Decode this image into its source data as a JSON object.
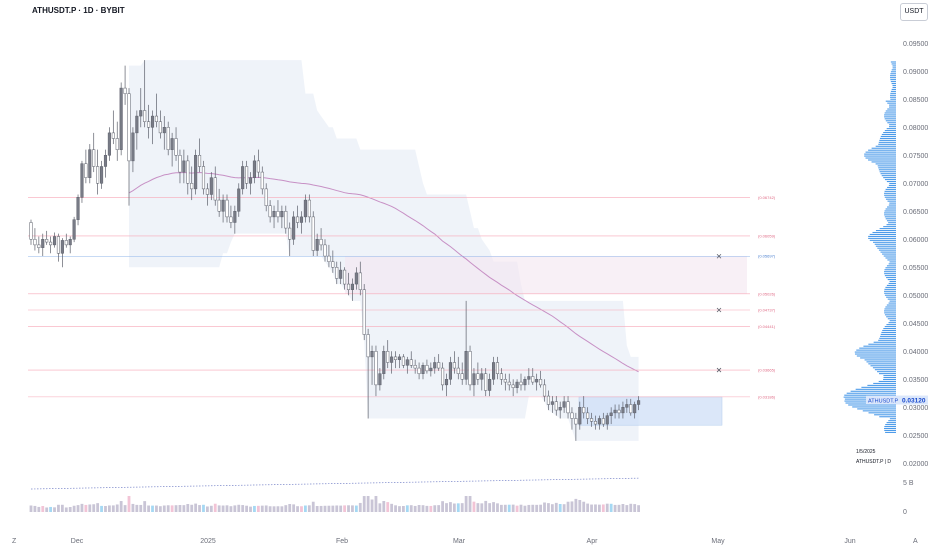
{
  "header": {
    "title": "ATHUSDT.P · 1D · BYBIT",
    "currency": "USDT"
  },
  "corner": {
    "left": "Z",
    "right": "A"
  },
  "profile_info": {
    "date": "1/5/2025",
    "symbol_tf": "ATHUSDT.P | D"
  },
  "price_tag": {
    "symbol": "ATHUSDT.P",
    "value": "0.03120"
  },
  "colors": {
    "bull": "#787b86",
    "bear": "#ffffff",
    "candle_border": "#5d606b",
    "vwap": "#c790c5",
    "band": "#e8eef6",
    "level": "#f7a8b8",
    "level_blue": "#8fb5ea",
    "zone": "#cfe0f8",
    "volume_profile": "#2d8ae5",
    "volume_bar": "#c9c5d6",
    "volume_bar_blue": "#a5d8f3",
    "volume_bar_pink": "#f2c4d6"
  },
  "chart_data": {
    "type": "candlestick",
    "x_tick_labels": [
      "Dec",
      "2025",
      "Feb",
      "Mar",
      "Apr",
      "May",
      "Jun"
    ],
    "y_tick_labels": [
      "0.02000",
      "0.02500",
      "0.03000",
      "0.03500",
      "0.04000",
      "0.04500",
      "0.05000",
      "0.05500",
      "0.06000",
      "0.06500",
      "0.07000",
      "0.07500",
      "0.08000",
      "0.08500",
      "0.09000",
      "0.09500"
    ],
    "ylim": [
      0.0188,
      0.0988
    ],
    "start_date": "2024-11-10",
    "volume_ticks": [
      "5 B",
      "0"
    ],
    "levels": [
      {
        "value": 0.06742,
        "label": "(0.06742)",
        "color": "pink"
      },
      {
        "value": 0.06059,
        "label": "(0.06059)",
        "color": "pink"
      },
      {
        "value": 0.05697,
        "label": "(0.05697)",
        "color": "blue"
      },
      {
        "value": 0.05026,
        "label": "(0.05026)",
        "color": "pink"
      },
      {
        "value": 0.04737,
        "label": "(0.04737)",
        "color": "pink"
      },
      {
        "value": 0.04441,
        "label": "(0.04441)",
        "color": "pink"
      },
      {
        "value": 0.03665,
        "label": "(0.03665)",
        "color": "pink"
      },
      {
        "value": 0.03186,
        "label": "(0.03186)",
        "color": "pink"
      }
    ],
    "candles": [
      [
        0.063,
        0.0635,
        0.059,
        0.06
      ],
      [
        0.06,
        0.062,
        0.058,
        0.059
      ],
      [
        0.059,
        0.0605,
        0.0575,
        0.0585
      ],
      [
        0.0585,
        0.061,
        0.057,
        0.06
      ],
      [
        0.06,
        0.0615,
        0.059,
        0.0595
      ],
      [
        0.0595,
        0.0605,
        0.0575,
        0.059
      ],
      [
        0.059,
        0.0612,
        0.0585,
        0.0605
      ],
      [
        0.0605,
        0.061,
        0.056,
        0.0575
      ],
      [
        0.0575,
        0.0602,
        0.055,
        0.0598
      ],
      [
        0.0598,
        0.061,
        0.0585,
        0.059
      ],
      [
        0.059,
        0.0605,
        0.0575,
        0.06
      ],
      [
        0.06,
        0.064,
        0.0595,
        0.0635
      ],
      [
        0.0635,
        0.068,
        0.0625,
        0.0675
      ],
      [
        0.0675,
        0.074,
        0.0665,
        0.0735
      ],
      [
        0.0735,
        0.076,
        0.07,
        0.071
      ],
      [
        0.071,
        0.077,
        0.07,
        0.076
      ],
      [
        0.076,
        0.079,
        0.072,
        0.073
      ],
      [
        0.073,
        0.076,
        0.068,
        0.07
      ],
      [
        0.07,
        0.074,
        0.069,
        0.073
      ],
      [
        0.073,
        0.076,
        0.071,
        0.075
      ],
      [
        0.075,
        0.08,
        0.074,
        0.079
      ],
      [
        0.079,
        0.083,
        0.077,
        0.078
      ],
      [
        0.078,
        0.081,
        0.074,
        0.076
      ],
      [
        0.076,
        0.088,
        0.075,
        0.087
      ],
      [
        0.087,
        0.091,
        0.084,
        0.086
      ],
      [
        0.086,
        0.087,
        0.066,
        0.074
      ],
      [
        0.074,
        0.08,
        0.072,
        0.079
      ],
      [
        0.079,
        0.083,
        0.076,
        0.082
      ],
      [
        0.082,
        0.087,
        0.08,
        0.083
      ],
      [
        0.083,
        0.092,
        0.08,
        0.081
      ],
      [
        0.081,
        0.084,
        0.078,
        0.08
      ],
      [
        0.08,
        0.083,
        0.077,
        0.082
      ],
      [
        0.082,
        0.086,
        0.08,
        0.081
      ],
      [
        0.081,
        0.083,
        0.078,
        0.079
      ],
      [
        0.079,
        0.082,
        0.076,
        0.08
      ],
      [
        0.08,
        0.081,
        0.075,
        0.076
      ],
      [
        0.076,
        0.079,
        0.073,
        0.078
      ],
      [
        0.078,
        0.08,
        0.074,
        0.075
      ],
      [
        0.075,
        0.076,
        0.07,
        0.072
      ],
      [
        0.072,
        0.076,
        0.07,
        0.074
      ],
      [
        0.074,
        0.075,
        0.068,
        0.07
      ],
      [
        0.07,
        0.073,
        0.067,
        0.069
      ],
      [
        0.069,
        0.076,
        0.068,
        0.075
      ],
      [
        0.075,
        0.078,
        0.072,
        0.073
      ],
      [
        0.073,
        0.074,
        0.068,
        0.069
      ],
      [
        0.069,
        0.07,
        0.066,
        0.068
      ],
      [
        0.068,
        0.072,
        0.067,
        0.071
      ],
      [
        0.071,
        0.073,
        0.066,
        0.067
      ],
      [
        0.067,
        0.069,
        0.064,
        0.065
      ],
      [
        0.065,
        0.068,
        0.063,
        0.067
      ],
      [
        0.067,
        0.068,
        0.063,
        0.064
      ],
      [
        0.064,
        0.066,
        0.062,
        0.063
      ],
      [
        0.063,
        0.066,
        0.061,
        0.065
      ],
      [
        0.065,
        0.07,
        0.064,
        0.069
      ],
      [
        0.069,
        0.074,
        0.068,
        0.073
      ],
      [
        0.073,
        0.074,
        0.069,
        0.07
      ],
      [
        0.07,
        0.072,
        0.068,
        0.071
      ],
      [
        0.071,
        0.075,
        0.07,
        0.074
      ],
      [
        0.074,
        0.076,
        0.071,
        0.072
      ],
      [
        0.072,
        0.073,
        0.068,
        0.069
      ],
      [
        0.069,
        0.07,
        0.065,
        0.066
      ],
      [
        0.066,
        0.067,
        0.063,
        0.064
      ],
      [
        0.064,
        0.066,
        0.062,
        0.065
      ],
      [
        0.065,
        0.067,
        0.063,
        0.064
      ],
      [
        0.064,
        0.066,
        0.062,
        0.065
      ],
      [
        0.065,
        0.066,
        0.061,
        0.062
      ],
      [
        0.062,
        0.063,
        0.057,
        0.06
      ],
      [
        0.06,
        0.065,
        0.059,
        0.064
      ],
      [
        0.064,
        0.066,
        0.062,
        0.063
      ],
      [
        0.063,
        0.065,
        0.061,
        0.064
      ],
      [
        0.064,
        0.068,
        0.063,
        0.067
      ],
      [
        0.067,
        0.068,
        0.063,
        0.064
      ],
      [
        0.064,
        0.065,
        0.057,
        0.058
      ],
      [
        0.058,
        0.061,
        0.057,
        0.06
      ],
      [
        0.06,
        0.062,
        0.058,
        0.059
      ],
      [
        0.059,
        0.06,
        0.056,
        0.057
      ],
      [
        0.057,
        0.059,
        0.055,
        0.056
      ],
      [
        0.056,
        0.058,
        0.054,
        0.055
      ],
      [
        0.055,
        0.056,
        0.052,
        0.053
      ],
      [
        0.053,
        0.056,
        0.052,
        0.0545
      ],
      [
        0.0545,
        0.055,
        0.051,
        0.052
      ],
      [
        0.052,
        0.054,
        0.05,
        0.051
      ],
      [
        0.051,
        0.053,
        0.049,
        0.052
      ],
      [
        0.052,
        0.055,
        0.051,
        0.054
      ],
      [
        0.054,
        0.056,
        0.05,
        0.051
      ],
      [
        0.051,
        0.052,
        0.042,
        0.043
      ],
      [
        0.043,
        0.044,
        0.028,
        0.039
      ],
      [
        0.039,
        0.041,
        0.034,
        0.04
      ],
      [
        0.04,
        0.041,
        0.032,
        0.034
      ],
      [
        0.034,
        0.037,
        0.033,
        0.036
      ],
      [
        0.036,
        0.041,
        0.035,
        0.04
      ],
      [
        0.04,
        0.042,
        0.037,
        0.038
      ],
      [
        0.038,
        0.04,
        0.036,
        0.039
      ],
      [
        0.039,
        0.04,
        0.037,
        0.0385
      ],
      [
        0.0385,
        0.0395,
        0.037,
        0.039
      ],
      [
        0.039,
        0.0395,
        0.037,
        0.0375
      ],
      [
        0.0375,
        0.039,
        0.036,
        0.0385
      ],
      [
        0.0385,
        0.04,
        0.037,
        0.0375
      ],
      [
        0.0375,
        0.0385,
        0.036,
        0.037
      ],
      [
        0.037,
        0.038,
        0.035,
        0.036
      ],
      [
        0.036,
        0.038,
        0.035,
        0.0375
      ],
      [
        0.0375,
        0.0385,
        0.036,
        0.0365
      ],
      [
        0.0365,
        0.038,
        0.0355,
        0.037
      ],
      [
        0.037,
        0.039,
        0.036,
        0.038
      ],
      [
        0.038,
        0.0395,
        0.0365,
        0.037
      ],
      [
        0.037,
        0.038,
        0.033,
        0.034
      ],
      [
        0.034,
        0.036,
        0.032,
        0.035
      ],
      [
        0.035,
        0.039,
        0.034,
        0.038
      ],
      [
        0.038,
        0.04,
        0.036,
        0.037
      ],
      [
        0.037,
        0.039,
        0.035,
        0.036
      ],
      [
        0.036,
        0.038,
        0.034,
        0.035
      ],
      [
        0.035,
        0.049,
        0.034,
        0.04
      ],
      [
        0.04,
        0.041,
        0.033,
        0.034
      ],
      [
        0.034,
        0.037,
        0.032,
        0.036
      ],
      [
        0.036,
        0.038,
        0.034,
        0.035
      ],
      [
        0.035,
        0.037,
        0.033,
        0.036
      ],
      [
        0.036,
        0.037,
        0.032,
        0.033
      ],
      [
        0.033,
        0.036,
        0.032,
        0.035
      ],
      [
        0.035,
        0.039,
        0.034,
        0.038
      ],
      [
        0.038,
        0.039,
        0.035,
        0.036
      ],
      [
        0.036,
        0.037,
        0.034,
        0.035
      ],
      [
        0.035,
        0.036,
        0.033,
        0.0345
      ],
      [
        0.0345,
        0.036,
        0.033,
        0.034
      ],
      [
        0.034,
        0.035,
        0.032,
        0.0335
      ],
      [
        0.0335,
        0.035,
        0.0325,
        0.0345
      ],
      [
        0.0345,
        0.036,
        0.033,
        0.034
      ],
      [
        0.034,
        0.0355,
        0.033,
        0.035
      ],
      [
        0.035,
        0.037,
        0.034,
        0.0355
      ],
      [
        0.0355,
        0.037,
        0.034,
        0.0345
      ],
      [
        0.0345,
        0.036,
        0.033,
        0.035
      ],
      [
        0.035,
        0.0365,
        0.0335,
        0.034
      ],
      [
        0.034,
        0.035,
        0.031,
        0.032
      ],
      [
        0.032,
        0.033,
        0.0295,
        0.0305
      ],
      [
        0.0305,
        0.032,
        0.029,
        0.031
      ],
      [
        0.031,
        0.032,
        0.0285,
        0.0295
      ],
      [
        0.0295,
        0.031,
        0.028,
        0.03
      ],
      [
        0.03,
        0.032,
        0.029,
        0.031
      ],
      [
        0.031,
        0.032,
        0.028,
        0.029
      ],
      [
        0.029,
        0.03,
        0.026,
        0.028
      ],
      [
        0.028,
        0.029,
        0.024,
        0.027
      ],
      [
        0.027,
        0.031,
        0.026,
        0.03
      ],
      [
        0.03,
        0.032,
        0.028,
        0.029
      ],
      [
        0.029,
        0.03,
        0.027,
        0.028
      ],
      [
        0.028,
        0.029,
        0.0265,
        0.0275
      ],
      [
        0.0275,
        0.0285,
        0.026,
        0.027
      ],
      [
        0.027,
        0.0285,
        0.026,
        0.028
      ],
      [
        0.028,
        0.029,
        0.0265,
        0.027
      ],
      [
        0.027,
        0.029,
        0.026,
        0.0285
      ],
      [
        0.0285,
        0.03,
        0.027,
        0.029
      ],
      [
        0.029,
        0.0305,
        0.028,
        0.0295
      ],
      [
        0.0295,
        0.0305,
        0.028,
        0.029
      ],
      [
        0.029,
        0.031,
        0.028,
        0.03
      ],
      [
        0.03,
        0.0315,
        0.029,
        0.0305
      ],
      [
        0.0305,
        0.0315,
        0.0285,
        0.029
      ],
      [
        0.029,
        0.031,
        0.028,
        0.0305
      ],
      [
        0.0305,
        0.032,
        0.0295,
        0.0312
      ]
    ],
    "volume_profile": "right-side histogram (horizontal)",
    "grid": false,
    "legend": "none"
  }
}
